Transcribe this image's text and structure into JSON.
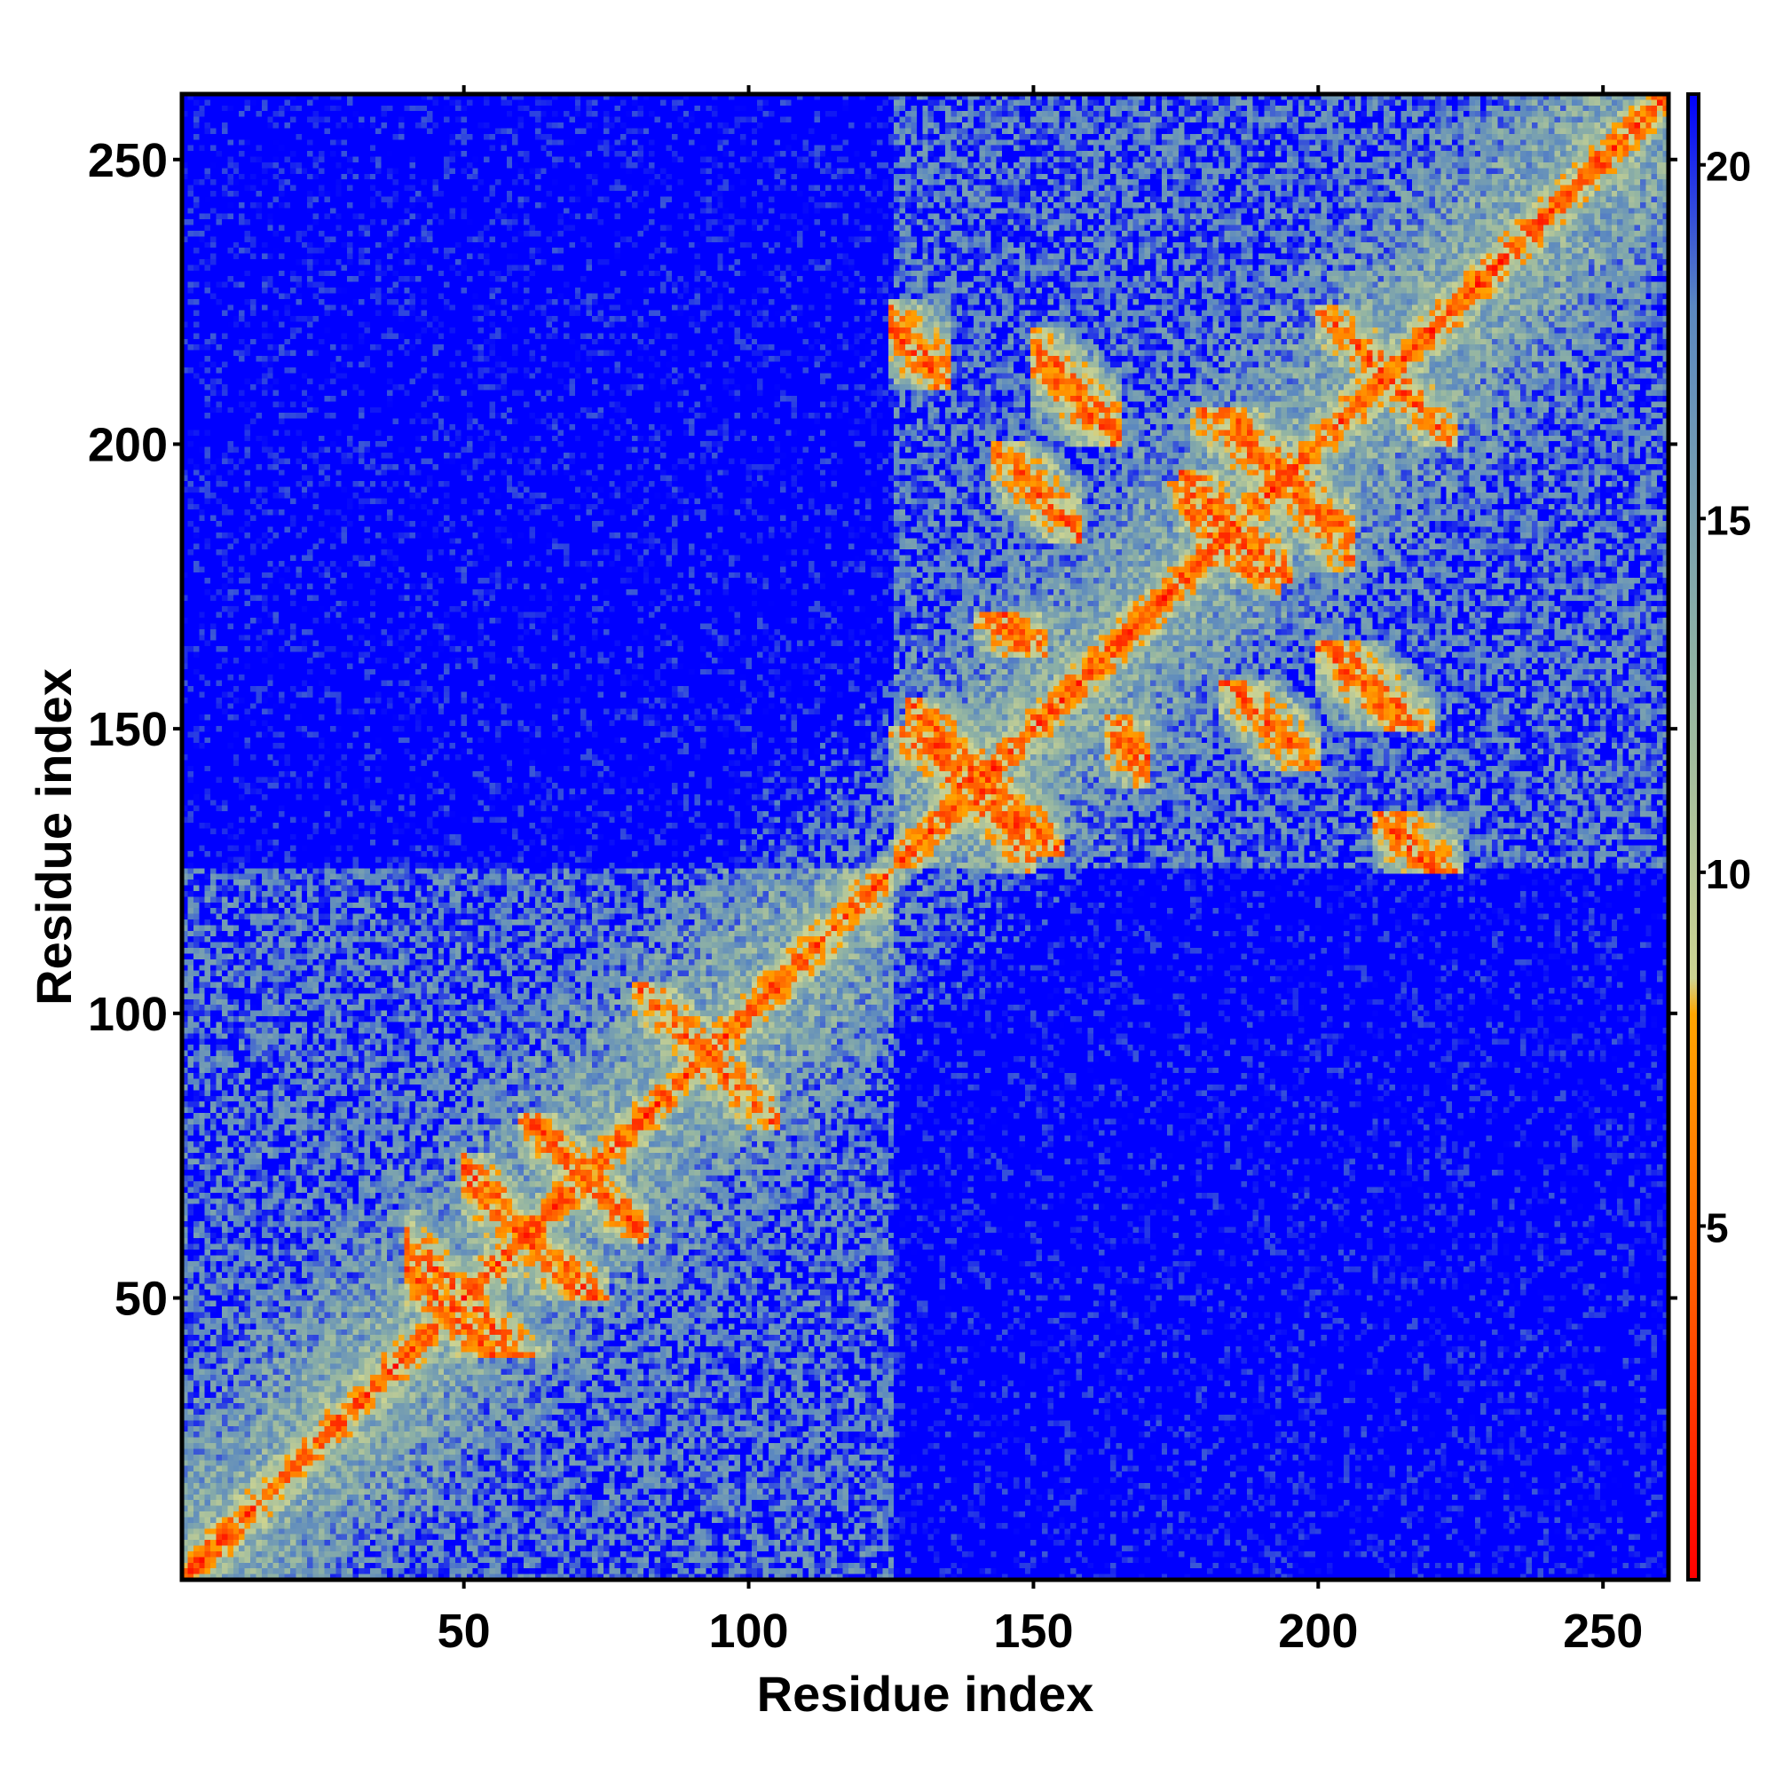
{
  "chart_data": {
    "type": "heatmap",
    "title": "",
    "xlabel": "Residue index",
    "ylabel": "Residue index",
    "x_range": [
      1,
      261
    ],
    "y_range": [
      1,
      261
    ],
    "x_ticks": [
      50,
      100,
      150,
      200,
      250
    ],
    "y_ticks": [
      50,
      100,
      150,
      200,
      250
    ],
    "colorbar": {
      "ticks": [
        5,
        10,
        15,
        20
      ],
      "range": [
        0,
        21
      ],
      "stops": [
        {
          "value": 0,
          "color": "#ff0000"
        },
        {
          "value": 4,
          "color": "#ff5a00"
        },
        {
          "value": 8,
          "color": "#ffa500"
        },
        {
          "value": 8.5,
          "color": "#cdd492"
        },
        {
          "value": 13,
          "color": "#8fb2a4"
        },
        {
          "value": 18,
          "color": "#5b88c0"
        },
        {
          "value": 21,
          "color": "#0000ff"
        }
      ]
    },
    "grid": false,
    "legend": "colorbar-right",
    "domains": [
      {
        "start": 1,
        "end": 125
      },
      {
        "start": 125,
        "end": 261
      }
    ],
    "strands": [
      [
        40,
        65,
        40,
        55
      ],
      [
        55,
        75,
        50,
        66
      ],
      [
        64,
        82,
        60,
        79
      ],
      [
        128,
        145,
        135,
        155
      ],
      [
        140,
        150,
        125,
        140
      ],
      [
        143,
        158,
        183,
        200
      ],
      [
        176,
        193,
        174,
        195
      ],
      [
        163,
        170,
        140,
        152
      ],
      [
        193,
        206,
        178,
        196
      ],
      [
        200,
        214,
        210,
        224
      ],
      [
        200,
        220,
        150,
        165
      ],
      [
        176,
        188,
        180,
        190
      ],
      [
        210,
        225,
        125,
        135
      ],
      [
        90,
        105,
        80,
        95
      ]
    ]
  }
}
